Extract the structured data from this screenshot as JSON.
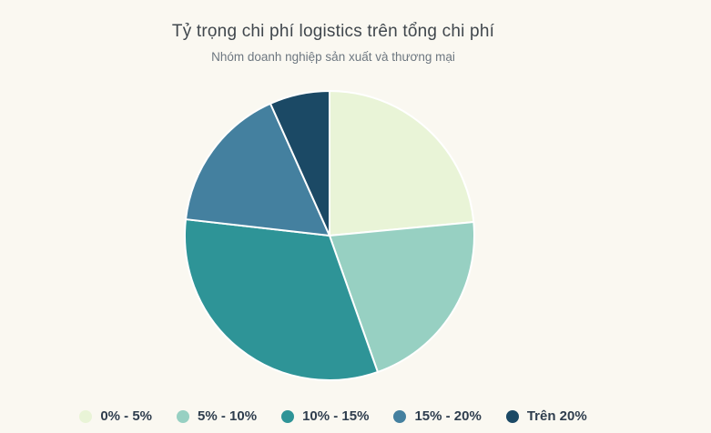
{
  "background_color": "#faf8f1",
  "title_color": "#40474d",
  "subtitle_color": "#6d7780",
  "legend_text_color": "#2f3e4e",
  "chart_data": {
    "type": "pie",
    "title": "Tỷ trọng chi phí logistics trên tổng chi phí",
    "subtitle": "Nhóm doanh nghiệp sản xuất và thương mại",
    "legend_position": "bottom",
    "start_angle_deg": 0,
    "direction": "clockwise",
    "slice_border_color": "#ffffff",
    "series": [
      {
        "name": "0% - 5%",
        "value": 23.5,
        "color": "#e9f4d7"
      },
      {
        "name": "5% - 10%",
        "value": 21.1,
        "color": "#97d0c2"
      },
      {
        "name": "10% - 15%",
        "value": 32.2,
        "color": "#2e9497"
      },
      {
        "name": "15% - 20%",
        "value": 16.5,
        "color": "#44809f"
      },
      {
        "name": "Trên 20%",
        "value": 6.7,
        "color": "#1b4965"
      }
    ]
  }
}
